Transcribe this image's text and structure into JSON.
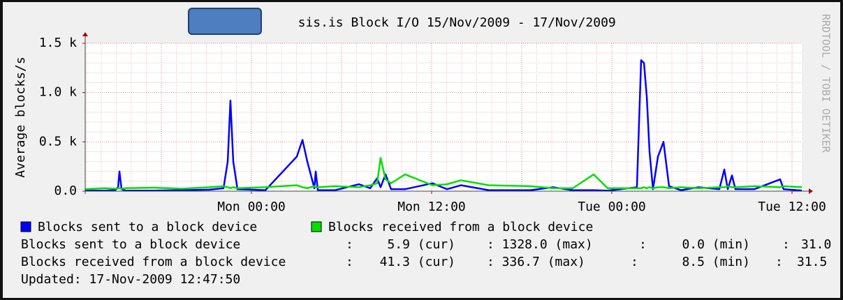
{
  "chart_data": {
    "type": "line",
    "title": "st        sis.is Block I/O 15/Nov/2009 - 17/Nov/2009",
    "y_label": "Average blocks/s",
    "watermark": "RRDTOOL / TOBI OETIKER",
    "xlim": [
      12.93,
      60.65
    ],
    "xticks": [
      {
        "value": 24,
        "label": "Mon 00:00"
      },
      {
        "value": 36,
        "label": "Mon 12:00"
      },
      {
        "value": 48,
        "label": "Tue 00:00"
      },
      {
        "value": 60,
        "label": "Tue 12:00"
      }
    ],
    "ylim": [
      0,
      1500
    ],
    "yticks": [
      {
        "value": 0,
        "label": "0.0"
      },
      {
        "value": 500,
        "label": "0.5 k"
      },
      {
        "value": 1000,
        "label": "1.0 k"
      },
      {
        "value": 1500,
        "label": "1.5 k"
      }
    ],
    "grid": true,
    "x": [
      12.93,
      14.23,
      14.93,
      15.12,
      15.21,
      15.35,
      15.63,
      17.49,
      19.35,
      21.21,
      22.14,
      22.42,
      22.6,
      22.79,
      23.07,
      24.93,
      27.02,
      27.4,
      27.72,
      28.19,
      28.28,
      28.42,
      29.58,
      31.16,
      31.91,
      32.37,
      32.6,
      32.93,
      33.3,
      34.23,
      36.05,
      37.02,
      37.95,
      39.81,
      42.6,
      44.09,
      45.4,
      46.79,
      47.72,
      49.67,
      49.95,
      50.14,
      50.33,
      50.51,
      50.74,
      51.07,
      51.44,
      51.81,
      52.6,
      53.77,
      55.16,
      55.49,
      55.72,
      56.0,
      56.23,
      57.49,
      59.21,
      59.44,
      60.65
    ],
    "series": [
      {
        "name": "Blocks sent to a block device",
        "color": "#0000ff",
        "values": [
          5,
          5,
          10,
          40,
          200,
          20,
          5,
          5,
          10,
          15,
          30,
          300,
          920,
          300,
          20,
          10,
          350,
          520,
          300,
          30,
          200,
          10,
          10,
          70,
          30,
          130,
          40,
          170,
          20,
          20,
          80,
          20,
          60,
          10,
          10,
          40,
          10,
          10,
          5,
          40,
          1328,
          1300,
          950,
          400,
          20,
          350,
          500,
          50,
          10,
          40,
          20,
          220,
          20,
          160,
          20,
          20,
          120,
          20,
          5.9
        ]
      },
      {
        "name": "Blocks received from a block device",
        "color": "#00e000",
        "values": [
          20,
          30,
          25,
          30,
          30,
          25,
          30,
          35,
          25,
          40,
          50,
          40,
          30,
          40,
          30,
          40,
          60,
          40,
          30,
          50,
          40,
          40,
          50,
          40,
          60,
          80,
          336.7,
          120,
          80,
          170,
          60,
          70,
          110,
          60,
          50,
          30,
          30,
          170,
          30,
          30,
          30,
          40,
          30,
          40,
          30,
          40,
          40,
          30,
          40,
          30,
          40,
          40,
          50,
          40,
          40,
          50,
          40,
          50,
          41.3
        ]
      }
    ],
    "stats": [
      {
        "sep1": ":",
        "cur": "5.9 (cur)",
        "max": ": 1328.0 (max)",
        "sep2": ":",
        "min": "0.0 (min)",
        "sep3": ":",
        "avg": "31.0"
      },
      {
        "sep1": ":",
        "cur": "41.3 (cur)",
        "max": ": 336.7 (max)",
        "sep2": ":",
        "min": "8.5 (min)",
        "sep3": ":",
        "avg": "31.5"
      }
    ],
    "updated": "Updated: 17-Nov-2009 12:47:50"
  }
}
